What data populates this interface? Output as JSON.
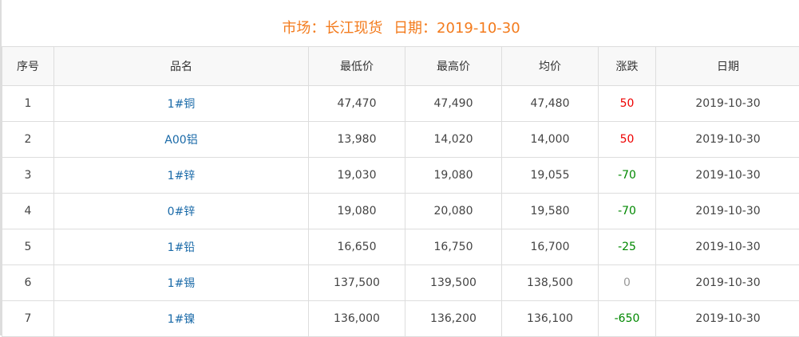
{
  "title": {
    "market": "市场：长江现货",
    "date": "日期：2019-10-30"
  },
  "colors": {
    "title": "#f37b1d",
    "name": "#1a6aa8",
    "up": "#ee0000",
    "down": "#008800",
    "flat": "#999999"
  },
  "table": {
    "headers": [
      "序号",
      "品名",
      "最低价",
      "最高价",
      "均价",
      "涨跌",
      "日期"
    ],
    "rows": [
      {
        "no": "1",
        "name": "1#铜",
        "low": "47,470",
        "high": "47,490",
        "avg": "47,480",
        "change": "50",
        "trend": "up",
        "date": "2019-10-30"
      },
      {
        "no": "2",
        "name": "A00铝",
        "low": "13,980",
        "high": "14,020",
        "avg": "14,000",
        "change": "50",
        "trend": "up",
        "date": "2019-10-30"
      },
      {
        "no": "3",
        "name": "1#锌",
        "low": "19,030",
        "high": "19,080",
        "avg": "19,055",
        "change": "-70",
        "trend": "down",
        "date": "2019-10-30"
      },
      {
        "no": "4",
        "name": "0#锌",
        "low": "19,080",
        "high": "20,080",
        "avg": "19,580",
        "change": "-70",
        "trend": "down",
        "date": "2019-10-30"
      },
      {
        "no": "5",
        "name": "1#铅",
        "low": "16,650",
        "high": "16,750",
        "avg": "16,700",
        "change": "-25",
        "trend": "down",
        "date": "2019-10-30"
      },
      {
        "no": "6",
        "name": "1#锡",
        "low": "137,500",
        "high": "139,500",
        "avg": "138,500",
        "change": "0",
        "trend": "flat",
        "date": "2019-10-30"
      },
      {
        "no": "7",
        "name": "1#镍",
        "low": "136,000",
        "high": "136,200",
        "avg": "136,100",
        "change": "-650",
        "trend": "down",
        "date": "2019-10-30"
      }
    ]
  }
}
